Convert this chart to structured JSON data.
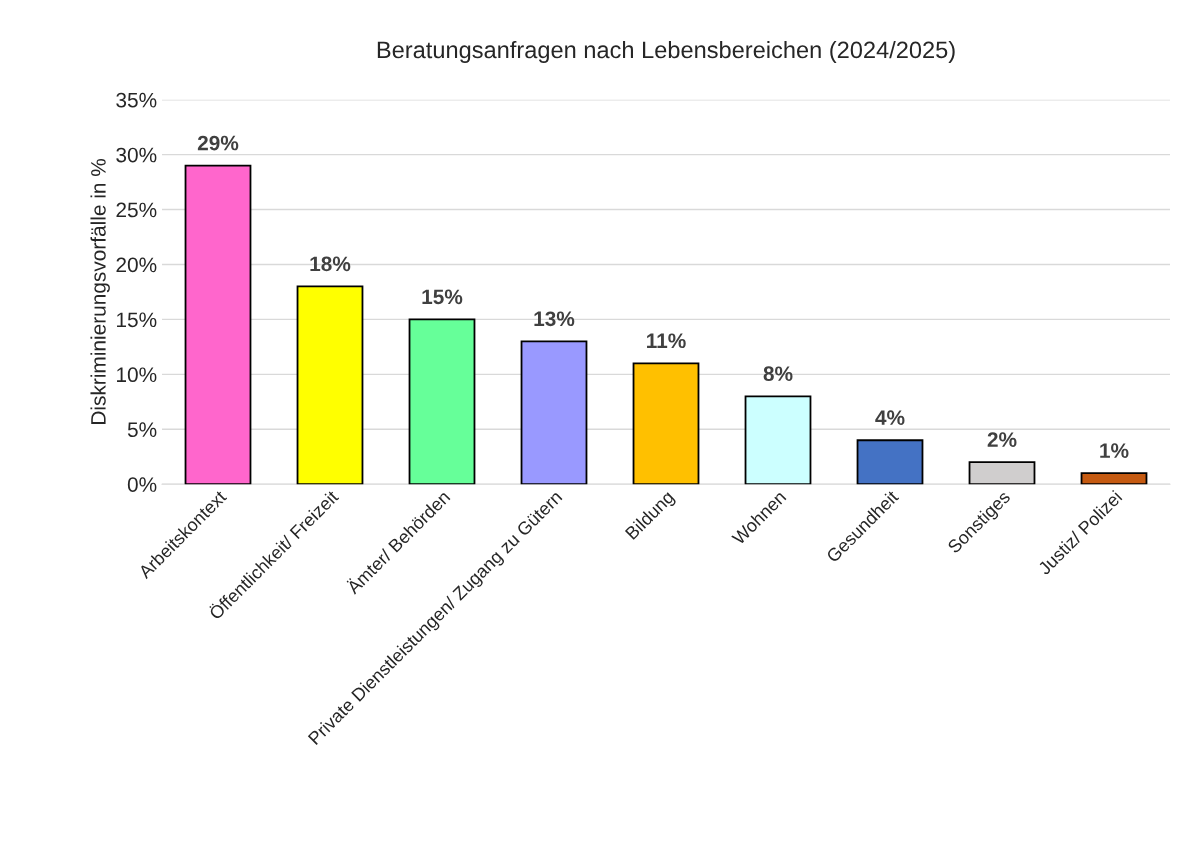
{
  "chart_data": {
    "type": "bar",
    "title": "Beratungsanfragen nach Lebensbereichen (2024/2025)",
    "ylabel": "Diskriminierungsvorfälle in %",
    "categories": [
      "Arbeitskontext",
      "Öffentlichkeit/ Freizeit",
      "Ämter/ Behörden",
      "Private Dienstleistungen/ Zugang zu Gütern",
      "Bildung",
      "Wohnen",
      "Gesundheit",
      "Sonstiges",
      "Justiz/ Polizei"
    ],
    "values": [
      29,
      18,
      15,
      13,
      11,
      8,
      4,
      2,
      1
    ],
    "colors": [
      "#ff66cc",
      "#ffff00",
      "#66ff99",
      "#9999ff",
      "#ffc000",
      "#ccffff",
      "#4472c4",
      "#d0cece",
      "#c55a11"
    ],
    "value_labels": [
      "29%",
      "18%",
      "15%",
      "13%",
      "11%",
      "8%",
      "4%",
      "2%",
      "1%"
    ],
    "ylim": [
      0,
      35
    ],
    "yticks": [
      {
        "value": 0,
        "label": "0%"
      },
      {
        "value": 5,
        "label": "5%"
      },
      {
        "value": 10,
        "label": "10%"
      },
      {
        "value": 15,
        "label": "15%"
      },
      {
        "value": 20,
        "label": "20%"
      },
      {
        "value": 25,
        "label": "25%"
      },
      {
        "value": 30,
        "label": "30%"
      },
      {
        "value": 35,
        "label": "35%"
      }
    ],
    "grid": "y",
    "legend": false
  }
}
